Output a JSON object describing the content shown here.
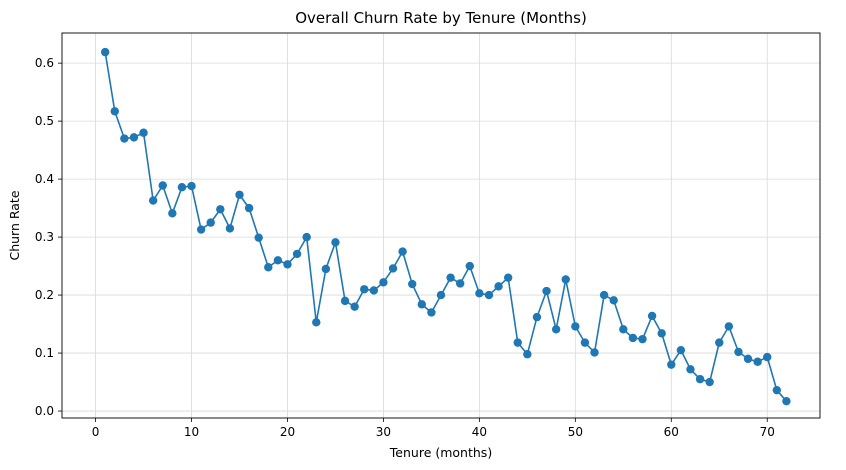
{
  "chart_data": {
    "type": "line",
    "title": "Overall Churn Rate by Tenure (Months)",
    "xlabel": "Tenure (months)",
    "ylabel": "Churn Rate",
    "xlim": [
      -3.5,
      75.5
    ],
    "ylim": [
      -0.012,
      0.652
    ],
    "x_ticks": [
      0,
      10,
      20,
      30,
      40,
      50,
      60,
      70
    ],
    "y_ticks": [
      0.0,
      0.1,
      0.2,
      0.3,
      0.4,
      0.5,
      0.6
    ],
    "grid": true,
    "marker": "circle",
    "colors": {
      "series": "#1f77b4",
      "grid": "#d9d9d9",
      "axes": "#000000"
    },
    "series": [
      {
        "x": [
          1,
          2,
          3,
          4,
          5,
          6,
          7,
          8,
          9,
          10,
          11,
          12,
          13,
          14,
          15,
          16,
          17,
          18,
          19,
          20,
          21,
          22,
          23,
          24,
          25,
          26,
          27,
          28,
          29,
          30,
          31,
          32,
          33,
          34,
          35,
          36,
          37,
          38,
          39,
          40,
          41,
          42,
          43,
          44,
          45,
          46,
          47,
          48,
          49,
          50,
          51,
          52,
          53,
          54,
          55,
          56,
          57,
          58,
          59,
          60,
          61,
          62,
          63,
          64,
          65,
          66,
          67,
          68,
          69,
          70,
          71,
          72
        ],
        "values": [
          0.619,
          0.517,
          0.47,
          0.472,
          0.48,
          0.363,
          0.389,
          0.341,
          0.386,
          0.388,
          0.313,
          0.325,
          0.348,
          0.315,
          0.373,
          0.35,
          0.299,
          0.248,
          0.26,
          0.253,
          0.271,
          0.3,
          0.153,
          0.245,
          0.291,
          0.19,
          0.18,
          0.21,
          0.208,
          0.222,
          0.246,
          0.275,
          0.219,
          0.184,
          0.17,
          0.2,
          0.23,
          0.22,
          0.25,
          0.203,
          0.2,
          0.215,
          0.23,
          0.118,
          0.098,
          0.162,
          0.207,
          0.141,
          0.227,
          0.146,
          0.118,
          0.101,
          0.2,
          0.191,
          0.141,
          0.126,
          0.124,
          0.164,
          0.134,
          0.08,
          0.105,
          0.072,
          0.055,
          0.05,
          0.118,
          0.146,
          0.102,
          0.09,
          0.085,
          0.093,
          0.036,
          0.017
        ]
      }
    ]
  }
}
